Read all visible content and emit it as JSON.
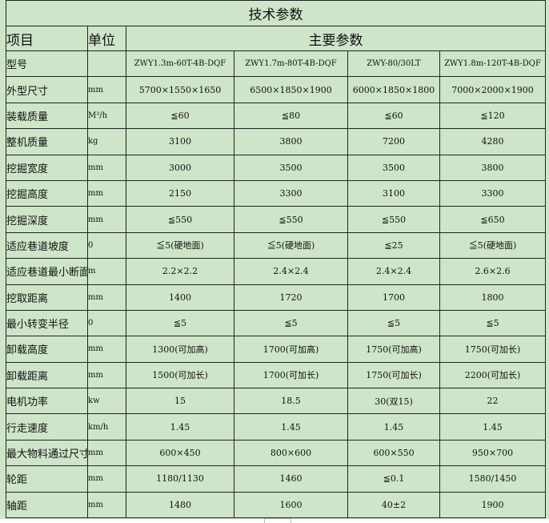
{
  "title": "技术参数",
  "headers": {
    "item": "项目",
    "unit": "单位",
    "main": "主要参数"
  },
  "rows": [
    {
      "name": "型号",
      "unit": "",
      "values": [
        "ZWY1.3m-60T-4B-DQF",
        "ZWY1.7m-80T-4B-DQF",
        "ZWY-80/30LT",
        "ZWY1.8m-120T-4B-DQF"
      ]
    },
    {
      "name": "外型尺寸",
      "unit": "mm",
      "values": [
        "5700×1550×1650",
        "6500×1850×1900",
        "6000×1850×1800",
        "7000×2000×1900"
      ]
    },
    {
      "name": "装载质量",
      "unit": "M³/h",
      "values": [
        "≦60",
        "≦80",
        "≦60",
        "≦120"
      ]
    },
    {
      "name": "整机质量",
      "unit": "kg",
      "values": [
        "3100",
        "3800",
        "7200",
        "4280"
      ]
    },
    {
      "name": "挖掘宽度",
      "unit": "mm",
      "values": [
        "3000",
        "3500",
        "3500",
        "3800"
      ]
    },
    {
      "name": "挖掘高度",
      "unit": "mm",
      "values": [
        "2150",
        "3300",
        "3100",
        "3300"
      ]
    },
    {
      "name": "挖掘深度",
      "unit": "mm",
      "values": [
        "≦550",
        "≦550",
        "≦550",
        "≦650"
      ]
    },
    {
      "name": "适应巷道坡度",
      "unit": "0",
      "values": [
        "≦5(硬地面)",
        "≦5(硬地面)",
        "≦25",
        "≦5(硬地面)"
      ]
    },
    {
      "name": "适应巷道最小断面",
      "unit": "m",
      "values": [
        "2.2×2.2",
        "2.4×2.4",
        "2.4×2.4",
        "2.6×2.6"
      ]
    },
    {
      "name": "挖取距离",
      "unit": "mm",
      "values": [
        "1400",
        "1720",
        "1700",
        "1800"
      ]
    },
    {
      "name": "最小转变半径",
      "unit": "0",
      "values": [
        "≦5",
        "≦5",
        "≦5",
        "≦5"
      ]
    },
    {
      "name": "卸载高度",
      "unit": "mm",
      "values": [
        "1300(可加高)",
        "1700(可加高)",
        "1750(可加高)",
        "1750(可加长)"
      ]
    },
    {
      "name": "卸载距离",
      "unit": "mm",
      "values": [
        "1500(可加长)",
        "1700(可加长)",
        "1750(可加长)",
        "2200(可加长)"
      ]
    },
    {
      "name": "电机功率",
      "unit": "kw",
      "values": [
        "15",
        "18.5",
        "30(双15)",
        "22"
      ]
    },
    {
      "name": "行走速度",
      "unit": "km/h",
      "values": [
        "1.45",
        "1.45",
        "1.45",
        "1.45"
      ]
    },
    {
      "name": "最大物料通过尺寸",
      "unit": "mm",
      "values": [
        "600×450",
        "800×600",
        "600×550",
        "950×700"
      ]
    },
    {
      "name": "轮距",
      "unit": "mm",
      "values": [
        "1180/1130",
        "1460",
        "≦0.1",
        "1580/1450"
      ]
    },
    {
      "name": "轴距",
      "unit": "mm",
      "values": [
        "1480",
        "1600",
        "40±2",
        "1900"
      ]
    }
  ]
}
